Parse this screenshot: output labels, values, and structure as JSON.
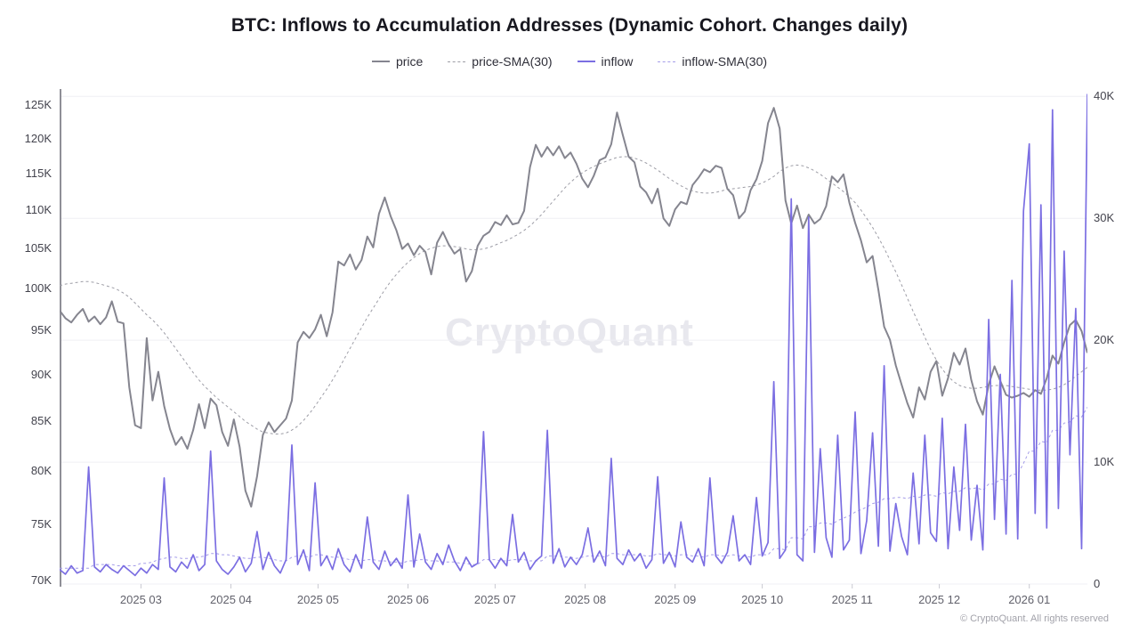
{
  "title": "BTC: Inflows to Accumulation Addresses (Dynamic Cohort. Changes daily)",
  "watermark": "CryptoQuant",
  "footer": "© CryptoQuant. All rights reserved",
  "colors": {
    "price": "#85858f",
    "price_sma": "#9d9da6",
    "inflow": "#7b6ee2",
    "inflow_sma": "#a59de9",
    "grid": "#efeff4",
    "axis_line": "#8f8f97",
    "tick_mark": "#c9c9d1"
  },
  "legend": [
    {
      "label": "price",
      "color": "#85858f",
      "style": "solid"
    },
    {
      "label": "price-SMA(30)",
      "color": "#9d9da6",
      "style": "dashed"
    },
    {
      "label": "inflow",
      "color": "#7b6ee2",
      "style": "solid"
    },
    {
      "label": "inflow-SMA(30)",
      "color": "#a59de9",
      "style": "dashed"
    }
  ],
  "chart_data": {
    "type": "line",
    "title": "BTC: Inflows to Accumulation Addresses (Dynamic Cohort. Changes daily)",
    "x_start": "2025-02-01",
    "x_step_days": 2,
    "x_total_days": 354,
    "x_tick_labels": [
      {
        "label": "2025 03",
        "day": 28
      },
      {
        "label": "2025 04",
        "day": 59
      },
      {
        "label": "2025 05",
        "day": 89
      },
      {
        "label": "2025 06",
        "day": 120
      },
      {
        "label": "2025 07",
        "day": 150
      },
      {
        "label": "2025 08",
        "day": 181
      },
      {
        "label": "2025 09",
        "day": 212
      },
      {
        "label": "2025 10",
        "day": 242
      },
      {
        "label": "2025 11",
        "day": 273
      },
      {
        "label": "2025 12",
        "day": 303
      },
      {
        "label": "2026 01",
        "day": 334
      }
    ],
    "y_left": {
      "scale": "log",
      "unit": "K USD",
      "ticks": [
        "125K",
        "120K",
        "115K",
        "110K",
        "105K",
        "100K",
        "95K",
        "90K",
        "85K",
        "80K",
        "75K",
        "70K"
      ],
      "tick_values": [
        125,
        120,
        115,
        110,
        105,
        100,
        95,
        90,
        85,
        80,
        75,
        70
      ],
      "range": [
        69.7,
        127.5
      ],
      "grid": false
    },
    "y_right": {
      "scale": "linear",
      "unit": "K addresses inflow",
      "ticks": [
        "40K",
        "30K",
        "20K",
        "10K",
        "0"
      ],
      "tick_values": [
        40,
        30,
        20,
        10,
        0
      ],
      "range": [
        0,
        40.6
      ],
      "grid": true
    },
    "legend_position": "top",
    "series": [
      {
        "name": "price-SMA(30)",
        "axis": "left",
        "style": "dashed",
        "width": 1,
        "values": [
          100.3,
          100.5,
          100.6,
          100.7,
          100.8,
          100.8,
          100.7,
          100.5,
          100.3,
          100.1,
          99.8,
          99.4,
          98.9,
          98.2,
          97.5,
          96.8,
          96.2,
          95.5,
          94.7,
          93.8,
          92.9,
          92.0,
          91.1,
          90.2,
          89.4,
          88.7,
          88.1,
          87.5,
          87.0,
          86.5,
          86.0,
          85.5,
          85.0,
          84.6,
          84.2,
          83.9,
          83.8,
          83.7,
          83.7,
          83.8,
          84.1,
          84.5,
          85.1,
          85.8,
          86.6,
          87.5,
          88.4,
          89.4,
          90.5,
          91.7,
          92.9,
          94.1,
          95.3,
          96.5,
          97.6,
          98.7,
          99.8,
          100.8,
          101.7,
          102.5,
          103.2,
          103.8,
          104.3,
          104.7,
          105.0,
          105.2,
          105.3,
          105.3,
          105.2,
          105.1,
          104.9,
          104.8,
          104.8,
          104.9,
          105.1,
          105.4,
          105.7,
          106.0,
          106.4,
          106.8,
          107.3,
          107.9,
          108.6,
          109.4,
          110.3,
          111.2,
          112.1,
          113.0,
          113.8,
          114.5,
          115.1,
          115.6,
          116.0,
          116.4,
          116.7,
          117.0,
          117.3,
          117.4,
          117.4,
          117.2,
          116.9,
          116.5,
          116.0,
          115.5,
          114.9,
          114.3,
          113.8,
          113.3,
          112.9,
          112.6,
          112.4,
          112.3,
          112.3,
          112.4,
          112.6,
          112.8,
          112.9,
          113.0,
          113.1,
          113.2,
          113.4,
          113.7,
          114.1,
          114.6,
          115.3,
          115.8,
          116.1,
          116.2,
          116.1,
          115.8,
          115.4,
          114.9,
          114.3,
          113.7,
          113.1,
          112.5,
          111.8,
          111.0,
          110.0,
          108.9,
          107.7,
          106.4,
          105.0,
          103.5,
          102.0,
          100.4,
          98.8,
          97.2,
          95.7,
          94.2,
          92.8,
          91.6,
          90.6,
          89.8,
          89.2,
          88.8,
          88.6,
          88.5,
          88.5,
          88.6,
          88.7,
          88.8,
          88.8,
          88.8,
          88.7,
          88.6,
          88.5,
          88.4,
          88.3,
          88.3,
          88.3,
          88.4,
          88.6,
          88.9,
          89.3,
          89.8,
          90.3,
          90.8
        ]
      },
      {
        "name": "inflow-SMA(30)",
        "axis": "right",
        "style": "dashed",
        "width": 1,
        "values": [
          1.3,
          1.3,
          1.3,
          1.3,
          1.3,
          1.3,
          1.6,
          1.6,
          1.6,
          1.6,
          1.5,
          1.5,
          1.5,
          1.5,
          1.7,
          1.7,
          1.8,
          2.0,
          2.1,
          2.2,
          2.2,
          2.1,
          2.1,
          2.2,
          2.2,
          2.3,
          2.5,
          2.5,
          2.4,
          2.4,
          2.3,
          2.2,
          2.1,
          2.1,
          2.2,
          2.2,
          2.1,
          2.0,
          1.9,
          1.9,
          2.2,
          2.3,
          2.3,
          2.2,
          2.4,
          2.4,
          2.3,
          2.2,
          2.2,
          2.1,
          2.0,
          2.0,
          1.9,
          2.0,
          2.0,
          1.9,
          1.9,
          1.8,
          1.8,
          1.7,
          1.9,
          1.9,
          2.0,
          2.0,
          1.9,
          1.9,
          1.8,
          1.8,
          1.8,
          1.7,
          1.7,
          1.6,
          1.6,
          2.0,
          2.0,
          2.0,
          1.9,
          1.9,
          2.0,
          2.0,
          2.0,
          1.9,
          1.9,
          1.9,
          2.3,
          2.3,
          2.3,
          2.2,
          2.2,
          2.1,
          2.2,
          2.3,
          2.3,
          2.3,
          2.2,
          2.5,
          2.5,
          2.4,
          2.4,
          2.4,
          2.4,
          2.3,
          2.3,
          2.5,
          2.4,
          2.4,
          2.3,
          2.4,
          2.4,
          2.3,
          2.3,
          2.2,
          2.4,
          2.4,
          2.3,
          2.3,
          2.4,
          2.3,
          2.3,
          2.2,
          2.4,
          2.4,
          2.4,
          2.9,
          2.9,
          2.8,
          3.8,
          3.8,
          3.7,
          4.7,
          4.7,
          5.0,
          5.0,
          4.9,
          5.2,
          5.4,
          5.6,
          5.9,
          6.1,
          6.3,
          6.6,
          6.7,
          7.0,
          7.0,
          7.1,
          7.1,
          7.0,
          7.2,
          7.1,
          7.3,
          7.3,
          7.2,
          7.5,
          7.4,
          7.6,
          7.6,
          7.9,
          7.8,
          7.9,
          7.7,
          8.2,
          8.2,
          8.6,
          8.5,
          9.0,
          9.0,
          9.9,
          10.9,
          10.9,
          11.7,
          11.6,
          12.6,
          12.6,
          13.2,
          13.3,
          13.8,
          13.7,
          14.5
        ]
      },
      {
        "name": "price",
        "axis": "left",
        "style": "solid",
        "width": 2,
        "values": [
          97.3,
          96.4,
          95.9,
          96.8,
          97.5,
          96.0,
          96.6,
          95.7,
          96.5,
          98.4,
          96.0,
          95.8,
          88.6,
          84.6,
          84.3,
          94.1,
          87.2,
          90.3,
          86.6,
          84.2,
          82.6,
          83.4,
          82.2,
          84.1,
          86.8,
          84.3,
          87.4,
          86.7,
          83.9,
          82.5,
          85.2,
          82.4,
          78.1,
          76.6,
          79.5,
          83.6,
          84.9,
          83.9,
          84.6,
          85.3,
          87.2,
          93.6,
          94.8,
          94.1,
          95.1,
          96.8,
          94.3,
          97.1,
          103.3,
          102.8,
          104.2,
          102.3,
          103.5,
          106.5,
          105.1,
          109.5,
          111.7,
          109.2,
          107.3,
          104.9,
          105.6,
          104.1,
          105.3,
          104.5,
          101.7,
          105.7,
          107.1,
          105.5,
          104.3,
          104.9,
          100.8,
          102.1,
          105.3,
          106.6,
          107.1,
          108.4,
          108.0,
          109.3,
          108.1,
          108.3,
          109.9,
          115.9,
          119.1,
          117.4,
          118.8,
          117.6,
          118.9,
          117.2,
          118.0,
          116.4,
          114.3,
          113.1,
          114.7,
          116.9,
          117.3,
          119.2,
          123.9,
          120.5,
          117.4,
          116.6,
          113.2,
          112.4,
          110.9,
          112.9,
          108.9,
          107.9,
          110.1,
          111.1,
          110.8,
          113.4,
          114.4,
          115.6,
          115.2,
          116.1,
          115.8,
          112.9,
          112.0,
          108.9,
          109.8,
          112.7,
          114.2,
          116.8,
          122.3,
          124.6,
          121.5,
          111.3,
          108.2,
          110.6,
          107.6,
          109.4,
          108.2,
          108.8,
          110.5,
          114.6,
          113.8,
          114.9,
          111.0,
          108.3,
          106.0,
          103.2,
          104.0,
          99.8,
          95.4,
          93.9,
          91.0,
          88.9,
          86.9,
          85.4,
          88.6,
          87.3,
          90.3,
          91.5,
          87.7,
          89.6,
          92.4,
          91.1,
          92.9,
          89.4,
          87.1,
          85.7,
          88.9,
          90.9,
          89.3,
          87.8,
          87.5,
          87.7,
          88.0,
          87.6,
          88.3,
          87.9,
          89.6,
          92.1,
          91.2,
          93.6,
          95.6,
          96.2,
          94.9,
          92.4
        ]
      },
      {
        "name": "inflow",
        "axis": "right",
        "style": "solid",
        "width": 1.7,
        "values": [
          1.2,
          0.8,
          1.5,
          0.9,
          1.1,
          9.6,
          1.4,
          1.0,
          1.6,
          1.2,
          0.9,
          1.5,
          1.1,
          0.7,
          1.3,
          0.9,
          1.6,
          1.2,
          8.7,
          1.4,
          1.0,
          1.8,
          1.3,
          2.4,
          1.1,
          1.6,
          10.9,
          1.9,
          1.2,
          0.8,
          1.4,
          2.2,
          1.0,
          1.7,
          4.3,
          1.2,
          2.6,
          1.5,
          0.9,
          2.0,
          11.4,
          1.6,
          2.8,
          1.1,
          8.3,
          1.5,
          2.3,
          1.2,
          2.9,
          1.6,
          1.0,
          2.4,
          1.3,
          5.5,
          1.8,
          1.2,
          2.7,
          1.5,
          2.1,
          1.3,
          7.3,
          1.4,
          4.1,
          1.8,
          1.2,
          2.5,
          1.6,
          3.2,
          1.9,
          1.1,
          2.2,
          1.4,
          1.7,
          12.5,
          2.0,
          1.3,
          2.1,
          1.5,
          5.7,
          1.8,
          2.6,
          1.2,
          1.9,
          2.3,
          12.6,
          1.7,
          2.9,
          1.4,
          2.2,
          1.6,
          2.4,
          4.6,
          1.8,
          2.7,
          1.5,
          10.3,
          2.1,
          1.6,
          2.8,
          1.9,
          2.5,
          1.3,
          2.0,
          8.8,
          1.7,
          2.6,
          1.4,
          5.1,
          2.2,
          1.8,
          2.9,
          1.5,
          8.7,
          2.3,
          1.7,
          2.6,
          5.6,
          1.9,
          2.4,
          1.6,
          7.1,
          2.3,
          3.4,
          16.6,
          2.1,
          2.8,
          31.6,
          2.4,
          1.9,
          30.1,
          2.6,
          11.1,
          3.8,
          2.2,
          12.2,
          2.8,
          3.6,
          14.1,
          2.5,
          5.2,
          12.4,
          3.1,
          17.9,
          2.7,
          6.6,
          3.9,
          2.4,
          9.1,
          3.3,
          12.2,
          4.2,
          3.5,
          13.6,
          2.9,
          9.6,
          4.4,
          13.1,
          3.6,
          8.1,
          2.8,
          21.7,
          5.3,
          17.2,
          4.1,
          24.9,
          3.7,
          30.6,
          36.1,
          5.8,
          31.1,
          4.6,
          38.9,
          6.2,
          27.3,
          10.6,
          22.6,
          2.9,
          40.2
        ]
      }
    ]
  }
}
